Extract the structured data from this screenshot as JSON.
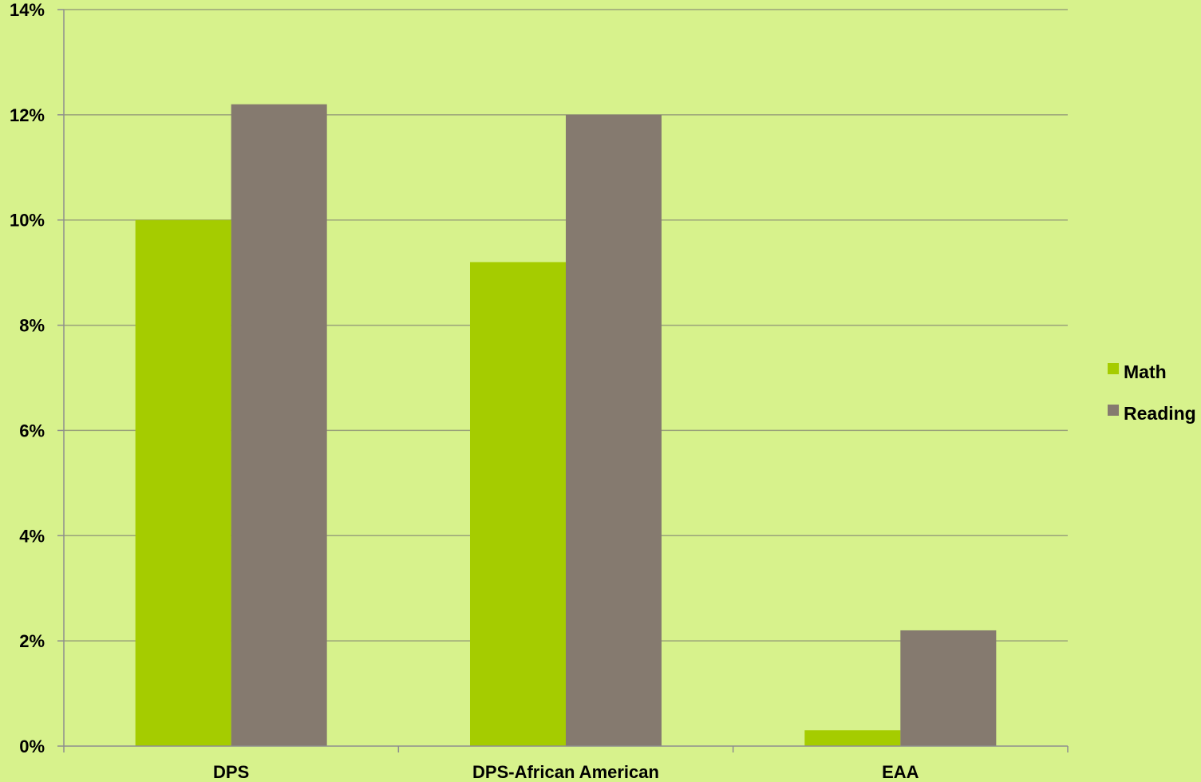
{
  "chart_data": {
    "type": "bar",
    "categories": [
      "DPS",
      "DPS-African American",
      "EAA"
    ],
    "series": [
      {
        "name": "Math",
        "values": [
          10.0,
          9.2,
          0.3
        ],
        "color": "#a5cc00"
      },
      {
        "name": "Reading",
        "values": [
          12.2,
          12.0,
          2.2
        ],
        "color": "#857a6f"
      }
    ],
    "value_unit": "%",
    "ylim": [
      0,
      14
    ],
    "yticks": [
      0,
      2,
      4,
      6,
      8,
      10,
      12,
      14
    ],
    "ytick_labels": [
      "0%",
      "2%",
      "4%",
      "6%",
      "8%",
      "10%",
      "12%",
      "14%"
    ],
    "grid": true,
    "legend_position": "right",
    "title": "",
    "xlabel": "",
    "ylabel": ""
  },
  "colors": {
    "background": "#d7f28c",
    "gridline": "#9aa27a",
    "axis": "#8e8e8e"
  }
}
